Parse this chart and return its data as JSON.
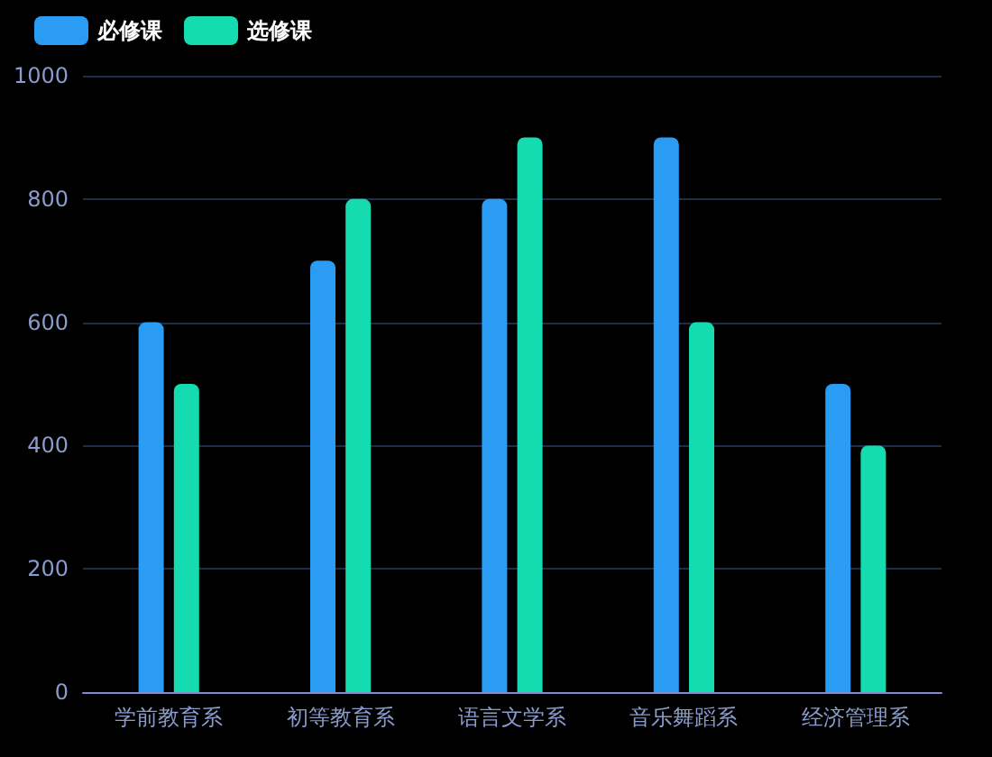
{
  "chart_data": {
    "type": "bar",
    "categories": [
      "学前教育系",
      "初等教育系",
      "语言文学系",
      "音乐舞蹈系",
      "经济管理系"
    ],
    "series": [
      {
        "name": "必修课",
        "color": "#2a9cf4",
        "values": [
          600,
          700,
          800,
          900,
          500
        ]
      },
      {
        "name": "选修课",
        "color": "#14dcb0",
        "values": [
          500,
          800,
          900,
          600,
          400
        ]
      }
    ],
    "ylim": [
      0,
      1000
    ],
    "yticks": [
      0,
      200,
      400,
      600,
      800,
      1000
    ],
    "grid": "y",
    "legend": "top left"
  }
}
